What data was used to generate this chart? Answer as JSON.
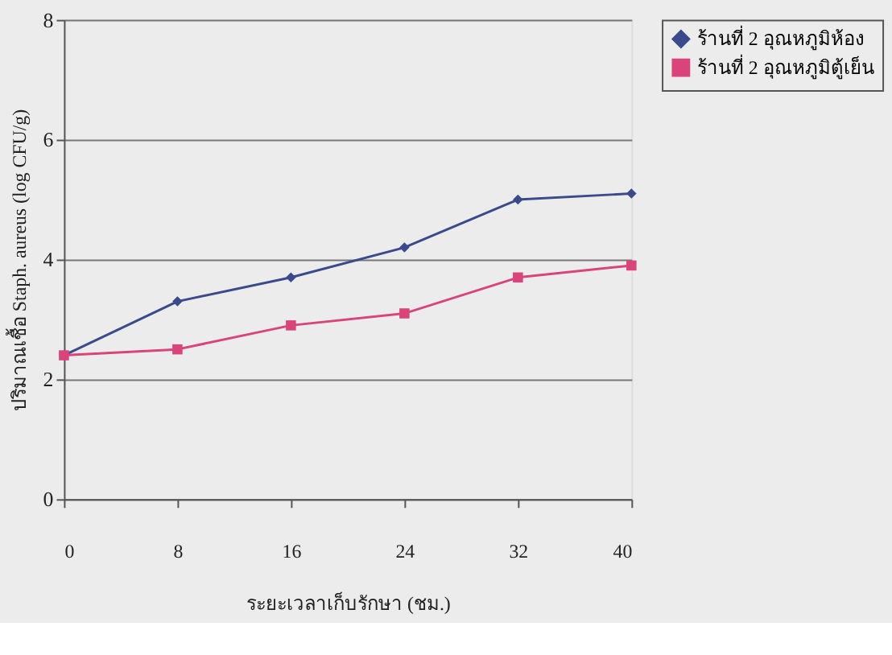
{
  "chart_data": {
    "type": "line",
    "xlabel": "ระยะเวลาเก็บรักษา (ชม.)",
    "ylabel": "ปริมาณเชื้อ Staph. aureus (log CFU/g)",
    "categories": [
      "0",
      "8",
      "16",
      "24",
      "32",
      "40"
    ],
    "series": [
      {
        "name": "ร้านที่ 2 อุณหภูมิห้อง",
        "color": "#3b4a8a",
        "marker": "diamond",
        "values": [
          2.4,
          3.3,
          3.7,
          4.2,
          5.0,
          5.1
        ]
      },
      {
        "name": "ร้านที่ 2 อุณหภูมิตู้เย็น",
        "color": "#d9457a",
        "marker": "square",
        "values": [
          2.4,
          2.5,
          2.9,
          3.1,
          3.7,
          3.9
        ]
      }
    ],
    "ylim": [
      0,
      8
    ],
    "yticks": [
      0,
      2,
      4,
      6,
      8
    ],
    "grid": "y",
    "legend": "right",
    "line_style": "solid"
  }
}
